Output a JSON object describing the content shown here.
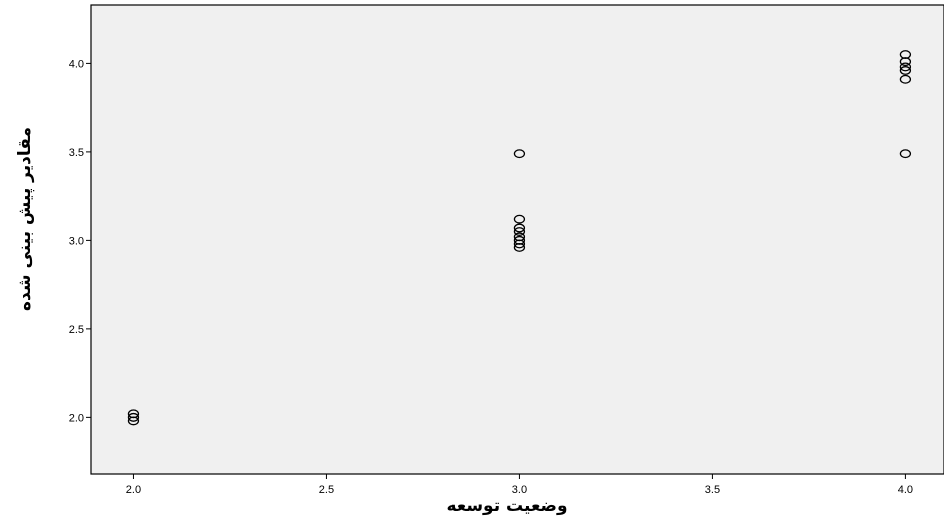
{
  "chart_data": {
    "type": "scatter",
    "title": "",
    "xlabel": "وضعیت توسعه",
    "ylabel": "مقادیر پیش بینی شده",
    "xlim": [
      1.89,
      4.1
    ],
    "ylim": [
      1.68,
      4.33
    ],
    "x_ticks": [
      "2.0",
      "2.5",
      "3.0",
      "3.5",
      "4.0"
    ],
    "y_ticks": [
      "2.0",
      "2.5",
      "3.0",
      "3.5",
      "4.0"
    ],
    "grid": false,
    "legend": "none",
    "colors": {
      "plot_background": "#f0f0f0",
      "marker_stroke": "#000000",
      "axis": "#000000"
    },
    "series": [
      {
        "points": [
          {
            "x": 2.0,
            "y": 2.02
          },
          {
            "x": 2.0,
            "y": 2.0
          },
          {
            "x": 2.0,
            "y": 1.98
          },
          {
            "x": 3.0,
            "y": 3.49
          },
          {
            "x": 3.0,
            "y": 3.12
          },
          {
            "x": 3.0,
            "y": 3.07
          },
          {
            "x": 3.0,
            "y": 3.05
          },
          {
            "x": 3.0,
            "y": 3.02
          },
          {
            "x": 3.0,
            "y": 3.0
          },
          {
            "x": 3.0,
            "y": 2.98
          },
          {
            "x": 3.0,
            "y": 2.96
          },
          {
            "x": 4.0,
            "y": 4.05
          },
          {
            "x": 4.0,
            "y": 4.01
          },
          {
            "x": 4.0,
            "y": 3.98
          },
          {
            "x": 4.0,
            "y": 3.96
          },
          {
            "x": 4.0,
            "y": 3.91
          },
          {
            "x": 4.0,
            "y": 3.49
          }
        ]
      }
    ]
  }
}
